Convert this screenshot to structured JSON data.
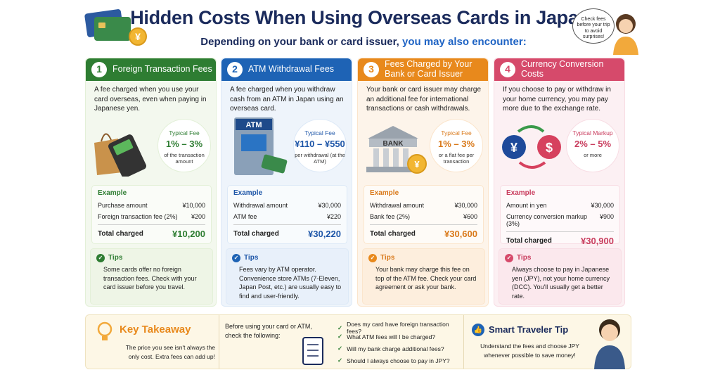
{
  "header": {
    "title": "Hidden Costs When Using Overseas Cards in Japan",
    "subtitle_prefix": "Depending on your bank or card issuer,",
    "subtitle_highlight": "you may also encounter:",
    "coin": "¥",
    "bubble": "Check fees before your trip to avoid surprises!"
  },
  "cards": [
    {
      "number": "1",
      "title": "Foreign Transaction Fees",
      "description": "A fee charged when you use your card overseas, even when paying in Japanese yen.",
      "badge": {
        "label": "Typical Fee",
        "value": "1% – 3%",
        "note": "of the transaction amount"
      },
      "example": {
        "heading": "Example",
        "rows": [
          [
            "Purchase amount",
            "¥10,000"
          ],
          [
            "Foreign transaction fee (2%)",
            "¥200"
          ]
        ],
        "total_label": "Total charged",
        "total_value": "¥10,200"
      },
      "tips": {
        "heading": "Tips",
        "text": "Some cards offer no foreign transaction fees. Check with your card issuer before you travel."
      }
    },
    {
      "number": "2",
      "title": "ATM Withdrawal Fees",
      "description": "A fee charged when you withdraw cash from an ATM in Japan using an overseas card.",
      "icon_label": "ATM",
      "badge": {
        "label": "Typical Fee",
        "value": "¥110 – ¥550",
        "note": "per withdrawal (at the ATM)"
      },
      "example": {
        "heading": "Example",
        "rows": [
          [
            "Withdrawal amount",
            "¥30,000"
          ],
          [
            "ATM fee",
            "¥220"
          ]
        ],
        "total_label": "Total charged",
        "total_value": "¥30,220"
      },
      "tips": {
        "heading": "Tips",
        "text": "Fees vary by ATM operator. Convenience store ATMs (7-Eleven, Japan Post, etc.) are usually easy to find and user-friendly."
      }
    },
    {
      "number": "3",
      "title": "Fees Charged by Your Bank or Card Issuer",
      "description": "Your bank or card issuer may charge an additional fee for international transactions or cash withdrawals.",
      "icon_label": "BANK",
      "coin": "¥",
      "badge": {
        "label": "Typical Fee",
        "value": "1% – 3%",
        "note": "or a flat fee per transaction"
      },
      "example": {
        "heading": "Example",
        "rows": [
          [
            "Withdrawal amount",
            "¥30,000"
          ],
          [
            "Bank fee (2%)",
            "¥600"
          ]
        ],
        "total_label": "Total charged",
        "total_value": "¥30,600"
      },
      "tips": {
        "heading": "Tips",
        "text": "Your bank may charge this fee on top of the ATM fee. Check your card agreement or ask your bank."
      }
    },
    {
      "number": "4",
      "title": "Currency Conversion Costs",
      "description": "If you choose to pay or withdraw in your home currency, you may pay more due to the exchange rate.",
      "symbols": [
        "¥",
        "$"
      ],
      "badge": {
        "label": "Typical Markup",
        "value": "2% – 5%",
        "note": "or more"
      },
      "example": {
        "heading": "Example",
        "rows": [
          [
            "Amount in yen",
            "¥30,000"
          ],
          [
            "Currency conversion markup (3%)",
            "¥900"
          ]
        ],
        "total_label": "Total charged",
        "total_value": "¥30,900"
      },
      "tips": {
        "heading": "Tips",
        "text": "Always choose to pay in Japanese yen (JPY), not your home currency (DCC). You'll usually get a better rate."
      }
    }
  ],
  "footer": {
    "takeaway": {
      "title": "Key Takeaway",
      "text": "The price you see isn't always the only cost. Extra fees can add up!"
    },
    "checklist": {
      "intro": "Before using your card or ATM, check the following:",
      "items": [
        "Does my card have foreign transaction fees?",
        "What ATM fees will I be charged?",
        "Will my bank charge additional fees?",
        "Should I always choose to pay in JPY?"
      ]
    },
    "smart_tip": {
      "title": "Smart Traveler Tip",
      "text": "Understand the fees and choose JPY whenever possible to save money!"
    }
  }
}
